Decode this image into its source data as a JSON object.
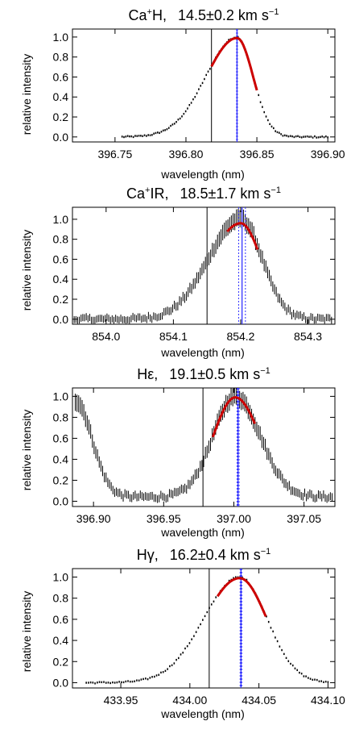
{
  "figure": {
    "type": "multi-panel line-profile figure",
    "shared": {
      "xlabel": "wavelength (nm)",
      "ylabel": "relative intensity",
      "yticks": [
        "0.0",
        "0.2",
        "0.4",
        "0.6",
        "0.8",
        "1.0"
      ],
      "colors": {
        "data": "#000000",
        "fit": "#cc0000",
        "center": "#3333ff",
        "rest": "#000000"
      }
    }
  },
  "chart_data": [
    {
      "type": "line",
      "title": {
        "prefix": "Ca",
        "sup": "+",
        "name": "H,",
        "value": "14.5±0.2 km s",
        "unit_sup": "−1"
      },
      "xlabel": "wavelength (nm)",
      "ylabel": "relative intensity",
      "xlim": [
        396.72,
        396.905
      ],
      "ylim": [
        -0.05,
        1.08
      ],
      "xticks": [
        396.75,
        396.8,
        396.85,
        396.9
      ],
      "xtick_labels": [
        "396.75",
        "396.80",
        "396.85",
        "396.90"
      ],
      "rest_wavelength": 396.818,
      "center_wavelength": 396.836,
      "center_uncertainty": 0.0003,
      "fit_range": [
        396.818,
        396.85
      ],
      "errorbar_style": "points",
      "profile": {
        "peak": 396.836,
        "width_left": 0.022,
        "width_right": 0.0115,
        "floor": 0.0,
        "start": 396.755,
        "end": 396.9
      }
    },
    {
      "type": "line",
      "title": {
        "prefix": "Ca",
        "sup": "+",
        "name": "IR,",
        "value": "18.5±1.7 km s",
        "unit_sup": "−1"
      },
      "xlabel": "wavelength (nm)",
      "ylabel": "relative intensity",
      "xlim": [
        853.95,
        854.34
      ],
      "ylim": [
        -0.05,
        1.12
      ],
      "xticks": [
        854.0,
        854.1,
        854.2,
        854.3
      ],
      "xtick_labels": [
        "854.0",
        "854.1",
        "854.2",
        "854.3"
      ],
      "rest_wavelength": 854.15,
      "center_wavelength": 854.202,
      "center_uncertainty": 0.005,
      "fit_range": [
        854.18,
        854.225
      ],
      "errorbar_style": "bars",
      "profile": {
        "peak": 854.2,
        "width_left": 0.048,
        "width_right": 0.032,
        "floor": 0.0,
        "start": 853.95,
        "end": 854.335
      }
    },
    {
      "type": "line",
      "title": {
        "prefix": "H",
        "sup": "",
        "name": "ε,",
        "value": "19.1±0.5 km s",
        "unit_sup": "−1"
      },
      "xlabel": "wavelength (nm)",
      "ylabel": "relative intensity",
      "xlim": [
        396.885,
        397.072
      ],
      "ylim": [
        -0.05,
        1.08
      ],
      "xticks": [
        396.9,
        396.95,
        397.0,
        397.05
      ],
      "xtick_labels": [
        "396.90",
        "396.95",
        "397.00",
        "397.05"
      ],
      "rest_wavelength": 396.978,
      "center_wavelength": 397.003,
      "center_uncertainty": 0.0007,
      "fit_range": [
        396.985,
        397.015
      ],
      "errorbar_style": "bars",
      "profile": {
        "peak": 397.001,
        "width_left": 0.016,
        "width_right": 0.018,
        "floor": 0.04,
        "start": 396.887,
        "end": 397.07,
        "second_peak": 396.887
      }
    },
    {
      "type": "line",
      "title": {
        "prefix": "H",
        "sup": "",
        "name": "γ,",
        "value": "16.2±0.4 km s",
        "unit_sup": "−1"
      },
      "xlabel": "wavelength (nm)",
      "ylabel": "relative intensity",
      "xlim": [
        433.915,
        434.105
      ],
      "ylim": [
        -0.05,
        1.08
      ],
      "xticks": [
        433.95,
        434.0,
        434.05,
        434.1
      ],
      "xtick_labels": [
        "433.95",
        "434.00",
        "434.05",
        "434.10"
      ],
      "rest_wavelength": 434.014,
      "center_wavelength": 434.037,
      "center_uncertainty": 0.0006,
      "fit_range": [
        434.02,
        434.055
      ],
      "errorbar_style": "points",
      "profile": {
        "peak": 434.036,
        "width_left": 0.026,
        "width_right": 0.02,
        "floor": 0.0,
        "start": 433.925,
        "end": 434.1
      }
    }
  ]
}
